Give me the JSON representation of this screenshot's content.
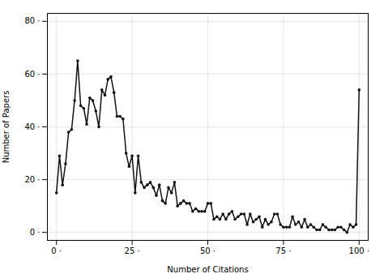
{
  "chart_data": {
    "type": "line",
    "x": [
      0,
      1,
      2,
      3,
      4,
      5,
      6,
      7,
      8,
      9,
      10,
      11,
      12,
      13,
      14,
      15,
      16,
      17,
      18,
      19,
      20,
      21,
      22,
      23,
      24,
      25,
      26,
      27,
      28,
      29,
      30,
      31,
      32,
      33,
      34,
      35,
      36,
      37,
      38,
      39,
      40,
      41,
      42,
      43,
      44,
      45,
      46,
      47,
      48,
      49,
      50,
      51,
      52,
      53,
      54,
      55,
      56,
      57,
      58,
      59,
      60,
      61,
      62,
      63,
      64,
      65,
      66,
      67,
      68,
      69,
      70,
      71,
      72,
      73,
      74,
      75,
      76,
      77,
      78,
      79,
      80,
      81,
      82,
      83,
      84,
      85,
      86,
      87,
      88,
      89,
      90,
      91,
      92,
      93,
      94,
      95,
      96,
      97,
      98,
      99,
      100
    ],
    "values": [
      15,
      29,
      18,
      26,
      38,
      39,
      50,
      65,
      48,
      47,
      41,
      51,
      50,
      46,
      40,
      54,
      52,
      58,
      59,
      53,
      44,
      44,
      43,
      30,
      25,
      29,
      15,
      29,
      19,
      17,
      18,
      19,
      17,
      14,
      18,
      12,
      11,
      17,
      15,
      19,
      10,
      11,
      12,
      11,
      11,
      8,
      9,
      8,
      8,
      8,
      11,
      11,
      5,
      6,
      5,
      7,
      5,
      7,
      8,
      5,
      6,
      7,
      7,
      3,
      7,
      4,
      5,
      6,
      2,
      5,
      3,
      4,
      7,
      7,
      3,
      2,
      2,
      2,
      6,
      3,
      4,
      2,
      5,
      2,
      3,
      2,
      1,
      1,
      3,
      2,
      1,
      1,
      1,
      2,
      2,
      1,
      0,
      3,
      2,
      3,
      54
    ],
    "xlabel": "Number of Citations",
    "ylabel": "Number of Papers",
    "xlim": [
      -3,
      103
    ],
    "ylim": [
      -3,
      83
    ],
    "xticks": [
      {
        "value": 0,
        "label": "0 ·"
      },
      {
        "value": 25,
        "label": "25 ·"
      },
      {
        "value": 50,
        "label": "50 ·"
      },
      {
        "value": 75,
        "label": "75 ·"
      },
      {
        "value": 100,
        "label": "100 ·"
      }
    ],
    "yticks": [
      {
        "value": 0,
        "label": "0 ·"
      },
      {
        "value": 20,
        "label": "20 ·"
      },
      {
        "value": 40,
        "label": "40 ·"
      },
      {
        "value": 60,
        "label": "60 ·"
      },
      {
        "value": 80,
        "label": "80 ·"
      }
    ],
    "color": "#111111",
    "marker": "circle",
    "grid": true
  }
}
